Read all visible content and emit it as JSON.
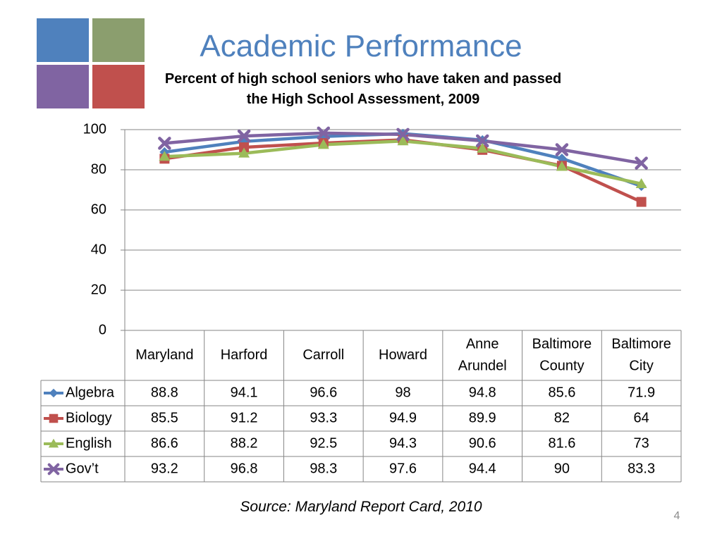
{
  "slide": {
    "title": "Academic Performance",
    "subtitle": "Percent of high school seniors who have taken and passed the High School Assessment, 2009",
    "source": "Source: Maryland Report Card, 2010",
    "slide_number": "4",
    "title_color": "#4f81bd",
    "logo_colors": [
      "#4f81bd",
      "#8b9e6e",
      "#8064a2",
      "#c0504d"
    ]
  },
  "chart_data": {
    "type": "line",
    "title": "",
    "xlabel": "",
    "ylabel": "",
    "ylim": [
      0,
      100
    ],
    "yticks": [
      0,
      20,
      40,
      60,
      80,
      100
    ],
    "grid": true,
    "legend": "data-table",
    "categories": [
      [
        "Maryland"
      ],
      [
        "Harford"
      ],
      [
        "Carroll"
      ],
      [
        "Howard"
      ],
      [
        "Anne",
        "Arundel"
      ],
      [
        "Baltimore",
        "County"
      ],
      [
        "Baltimore",
        "City"
      ]
    ],
    "series": [
      {
        "name": "Algebra",
        "marker": "diamond",
        "color": "#4f81bd",
        "values": [
          88.8,
          94.1,
          96.6,
          98,
          94.8,
          85.6,
          71.9
        ]
      },
      {
        "name": "Biology",
        "marker": "square",
        "color": "#c0504d",
        "values": [
          85.5,
          91.2,
          93.3,
          94.9,
          89.9,
          82,
          64
        ]
      },
      {
        "name": "English",
        "marker": "triangle",
        "color": "#9bbb59",
        "values": [
          86.6,
          88.2,
          92.5,
          94.3,
          90.6,
          81.6,
          73
        ]
      },
      {
        "name": "Gov’t",
        "marker": "x",
        "color": "#8064a2",
        "values": [
          93.2,
          96.8,
          98.3,
          97.6,
          94.4,
          90,
          83.3
        ]
      }
    ]
  }
}
